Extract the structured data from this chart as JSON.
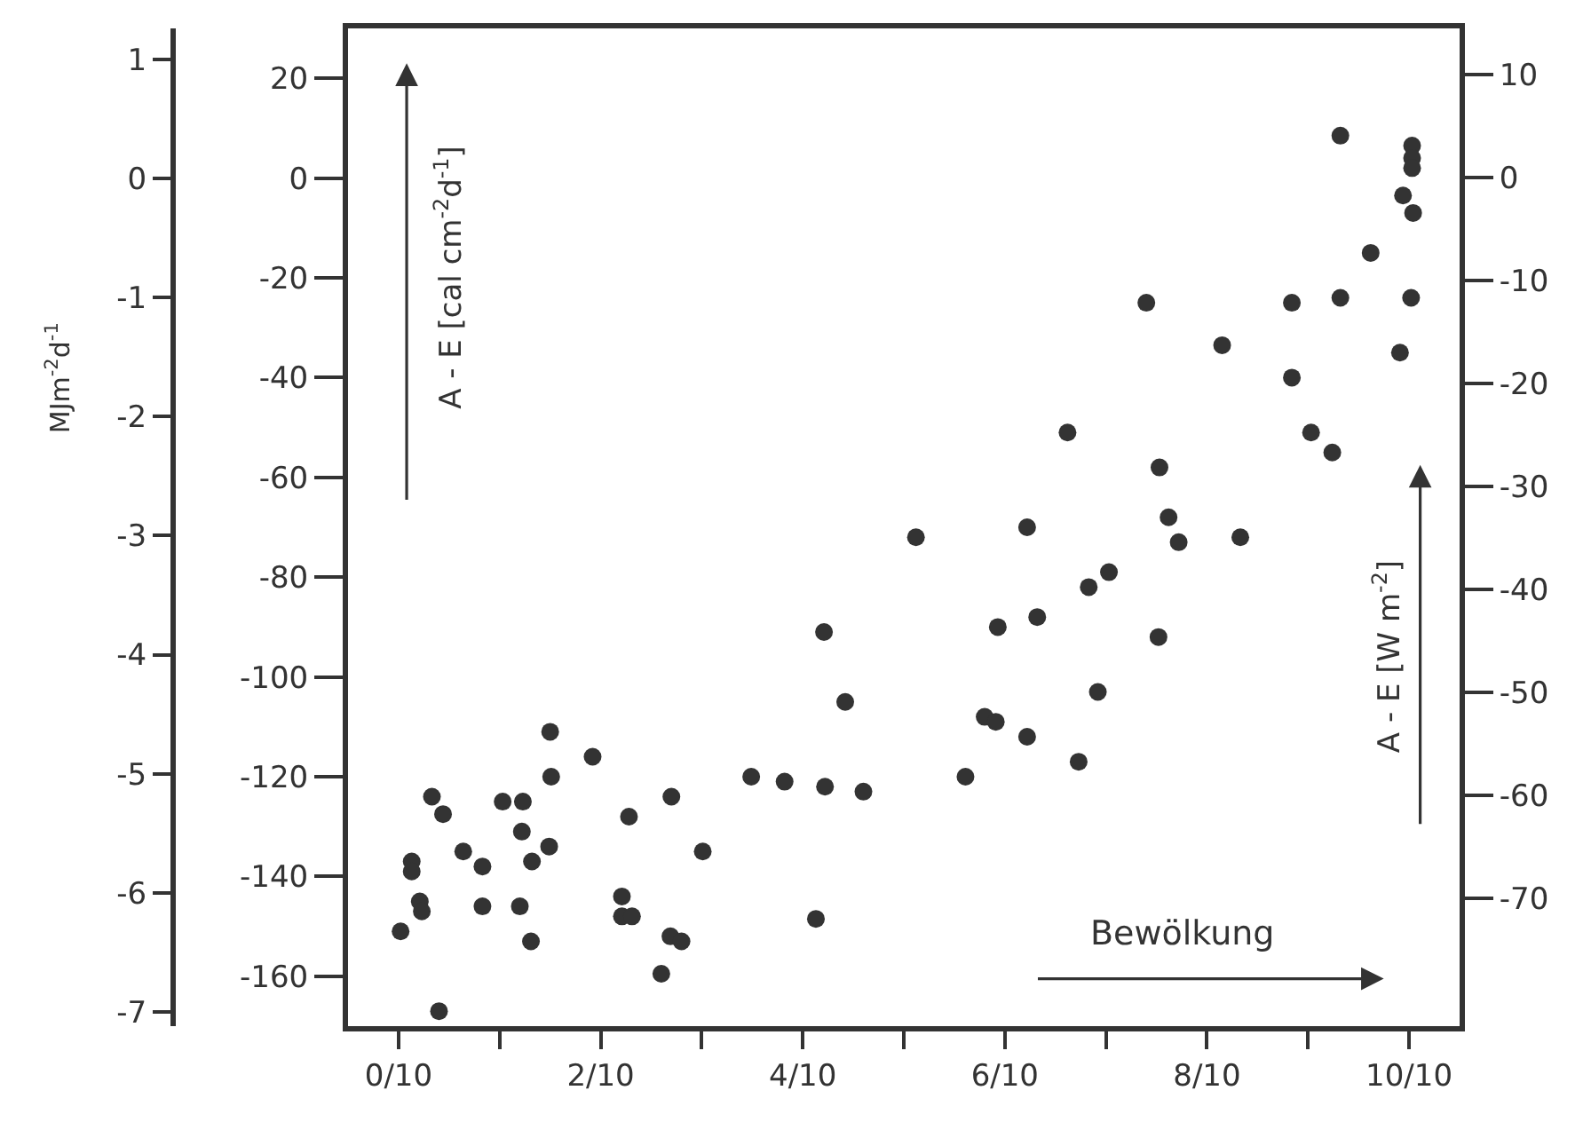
{
  "chart_data": {
    "type": "scatter",
    "xlabel": "Bewölkung",
    "ylabel": "A - E [cal cm$^{-2}$d$^{-1}$]",
    "y2label": "A - E [W m$^{-2}$]",
    "y3label": "MJm$^{-2}$d$^{-1}$",
    "xlim": [
      -0.05,
      1.05
    ],
    "xticks": [
      {
        "value": 0,
        "label": "0/10"
      },
      {
        "value": 0.1,
        "label": null
      },
      {
        "value": 0.2,
        "label": "2/10"
      },
      {
        "value": 0.3,
        "label": null
      },
      {
        "value": 0.4,
        "label": "4/10"
      },
      {
        "value": 0.5,
        "label": null
      },
      {
        "value": 0.6,
        "label": "6/10"
      },
      {
        "value": 0.7,
        "label": null
      },
      {
        "value": 0.8,
        "label": "8/10"
      },
      {
        "value": 0.9,
        "label": null
      },
      {
        "value": 1,
        "label": "10/10"
      }
    ],
    "ylim": [
      -170,
      30
    ],
    "yticks": [
      20,
      0,
      -20,
      -40,
      -60,
      -80,
      -100,
      -120,
      -140,
      -160
    ],
    "y2lim": [
      -82.4,
      14.5
    ],
    "y2ticks": [
      10,
      0,
      -10,
      -20,
      -30,
      -40,
      -50,
      -60,
      -70
    ],
    "y3lim": [
      -7.12,
      1.26
    ],
    "y3ticks": [
      1,
      0,
      -1,
      -2,
      -3,
      -4,
      -5,
      -6,
      -7
    ],
    "grid": false,
    "marker": "circle",
    "series": [
      {
        "color": "#333333",
        "x": [
          0.512,
          0.421,
          0.442,
          0.561,
          0.15,
          0.192,
          0.033,
          0.044,
          0.103,
          0.123,
          0.151,
          0.122,
          0.132,
          0.149,
          0.228,
          0.27,
          0.301,
          0.349,
          0.382,
          0.422,
          0.46,
          0.013,
          0.013,
          0.064,
          0.083,
          0.021,
          0.023,
          0.002,
          0.083,
          0.12,
          0.131,
          0.221,
          0.221,
          0.231,
          0.269,
          0.28,
          0.26,
          0.413,
          0.04,
          0.662,
          0.903,
          0.924,
          0.753,
          0.622,
          0.762,
          0.772,
          0.833,
          0.703,
          0.683,
          0.593,
          0.632,
          0.752,
          0.692,
          0.58,
          0.591,
          0.622,
          0.673,
          0.932,
          1.003,
          1.003,
          1.003,
          0.994,
          1.004,
          0.962,
          0.884,
          0.932,
          1.002,
          0.815,
          0.991,
          0.884,
          0.74
        ],
        "values": [
          -72,
          -91,
          -105,
          -120,
          -111,
          -116,
          -124,
          -127.5,
          -125,
          -125,
          -120,
          -131,
          -137,
          -134,
          -128,
          -124,
          -135,
          -120,
          -121,
          -122,
          -123,
          -137,
          -139,
          -135,
          -138,
          -145,
          -147,
          -151,
          -146,
          -146,
          -153,
          -144,
          -148,
          -148,
          -152,
          -153,
          -159.5,
          -148.5,
          -167,
          -51,
          -51,
          -55,
          -58,
          -70,
          -68,
          -73,
          -72,
          -79,
          -82,
          -90,
          -88,
          -92,
          -103,
          -108,
          -109,
          -112,
          -117,
          8.5,
          6.5,
          4,
          2,
          -3.5,
          -7,
          -15,
          -25,
          -24,
          -24,
          -33.5,
          -35,
          -40,
          -25
        ]
      }
    ]
  }
}
